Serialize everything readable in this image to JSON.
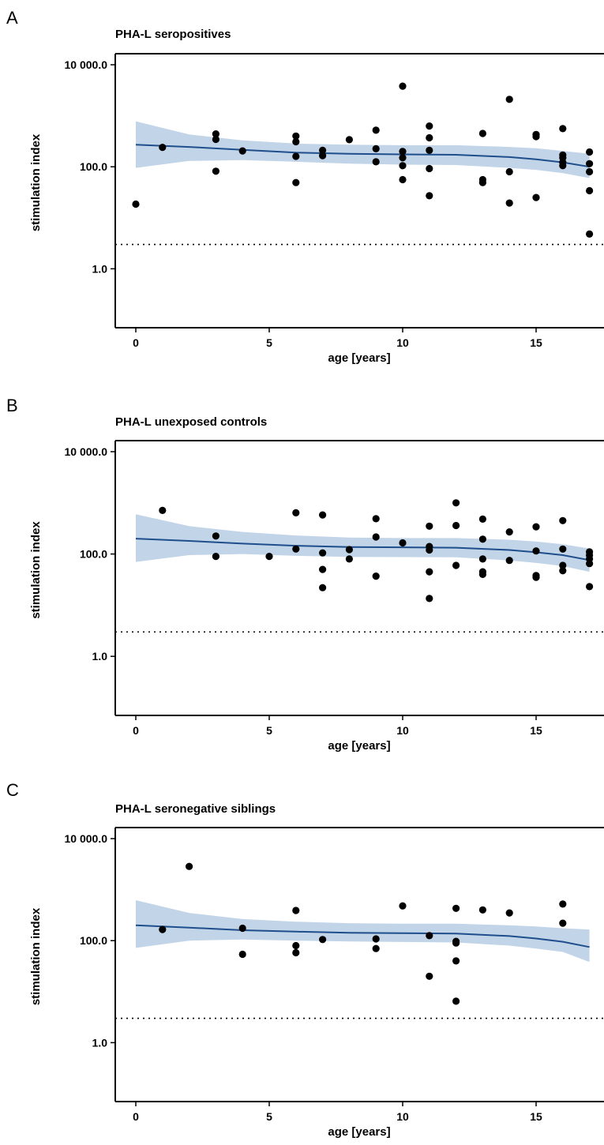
{
  "chart_data": [
    {
      "type": "scatter",
      "panel_label": "A",
      "title": "PHA-L seropositives",
      "xlabel": "age [years]",
      "ylabel": "stimulation index",
      "x_scale": "linear",
      "y_scale": "log",
      "xlim": [
        -1.5,
        17.5
      ],
      "ylim": [
        0.07,
        10000
      ],
      "x_ticks": [
        0,
        5,
        10,
        15
      ],
      "y_ticks": [
        1,
        100,
        10000
      ],
      "y_tick_labels": [
        "1.0",
        "100.0",
        "10 000.0"
      ],
      "reference_line": 3,
      "grid": false,
      "series": [
        {
          "kind": "points",
          "points": [
            [
              0,
              18.5
            ],
            [
              1,
              240
            ],
            [
              3,
              440
            ],
            [
              3,
              345
            ],
            [
              3,
              82
            ],
            [
              4,
              205
            ],
            [
              6,
              400
            ],
            [
              6,
              310
            ],
            [
              6,
              160
            ],
            [
              6,
              49
            ],
            [
              7,
              210
            ],
            [
              7,
              165
            ],
            [
              8,
              340
            ],
            [
              9,
              520
            ],
            [
              9,
              225
            ],
            [
              9,
              125
            ],
            [
              10,
              3800
            ],
            [
              10,
              200
            ],
            [
              10,
              150
            ],
            [
              10,
              105
            ],
            [
              10,
              56
            ],
            [
              11,
              630
            ],
            [
              11,
              370
            ],
            [
              11,
              210
            ],
            [
              11,
              92
            ],
            [
              11,
              27
            ],
            [
              13,
              450
            ],
            [
              13,
              56
            ],
            [
              13,
              49
            ],
            [
              14,
              2100
            ],
            [
              14,
              80
            ],
            [
              14,
              19.5
            ],
            [
              15,
              430
            ],
            [
              15,
              390
            ],
            [
              15,
              25
            ],
            [
              16,
              560
            ],
            [
              16,
              170
            ],
            [
              16,
              150
            ],
            [
              16,
              122
            ],
            [
              16,
              105
            ],
            [
              17,
              195
            ],
            [
              17,
              115
            ],
            [
              17,
              80
            ],
            [
              17,
              34
            ],
            [
              17,
              4.8
            ]
          ]
        },
        {
          "kind": "smooth",
          "color": "#1f4e8c",
          "band_color": "#c2d4e8",
          "x": [
            0,
            2,
            4,
            6,
            8,
            10,
            12,
            14,
            15,
            16,
            17
          ],
          "y": [
            270,
            245,
            215,
            190,
            180,
            175,
            172,
            155,
            140,
            122,
            100
          ],
          "lower": [
            95,
            130,
            135,
            125,
            115,
            110,
            108,
            95,
            87,
            75,
            60
          ],
          "upper": [
            780,
            430,
            330,
            285,
            270,
            265,
            265,
            245,
            230,
            205,
            180
          ]
        }
      ]
    },
    {
      "type": "scatter",
      "panel_label": "B",
      "title": "PHA-L unexposed controls",
      "xlabel": "age [years]",
      "ylabel": "stimulation index",
      "x_scale": "linear",
      "y_scale": "log",
      "xlim": [
        -1.5,
        17.5
      ],
      "ylim": [
        0.07,
        10000
      ],
      "x_ticks": [
        0,
        5,
        10,
        15
      ],
      "y_ticks": [
        1,
        100,
        10000
      ],
      "y_tick_labels": [
        "1.0",
        "100.0",
        "10 000.0"
      ],
      "reference_line": 3,
      "grid": false,
      "series": [
        {
          "kind": "points",
          "points": [
            [
              1,
              710
            ],
            [
              3,
              225
            ],
            [
              3,
              90
            ],
            [
              5,
              90
            ],
            [
              6,
              640
            ],
            [
              6,
              125
            ],
            [
              7,
              580
            ],
            [
              7,
              105
            ],
            [
              7,
              50
            ],
            [
              7,
              22
            ],
            [
              8,
              122
            ],
            [
              8,
              80
            ],
            [
              9,
              490
            ],
            [
              9,
              215
            ],
            [
              9,
              37
            ],
            [
              10,
              165
            ],
            [
              11,
              350
            ],
            [
              11,
              140
            ],
            [
              11,
              120
            ],
            [
              11,
              45
            ],
            [
              11,
              13.5
            ],
            [
              12,
              1000
            ],
            [
              12,
              360
            ],
            [
              12,
              60
            ],
            [
              13,
              480
            ],
            [
              13,
              195
            ],
            [
              13,
              80
            ],
            [
              13,
              45
            ],
            [
              13,
              40
            ],
            [
              14,
              270
            ],
            [
              14,
              75
            ],
            [
              15,
              340
            ],
            [
              15,
              115
            ],
            [
              15,
              38
            ],
            [
              15,
              35
            ],
            [
              16,
              450
            ],
            [
              16,
              125
            ],
            [
              16,
              60
            ],
            [
              16,
              47
            ],
            [
              17,
              110
            ],
            [
              17,
              95
            ],
            [
              17,
              80
            ],
            [
              17,
              65
            ],
            [
              17,
              23
            ]
          ]
        },
        {
          "kind": "smooth",
          "color": "#1f4e8c",
          "band_color": "#c2d4e8",
          "x": [
            0,
            2,
            4,
            6,
            8,
            10,
            12,
            14,
            15,
            16,
            17
          ],
          "y": [
            200,
            180,
            160,
            145,
            137,
            135,
            133,
            120,
            108,
            95,
            76
          ],
          "lower": [
            70,
            95,
            100,
            92,
            88,
            87,
            86,
            75,
            67,
            58,
            45
          ],
          "upper": [
            600,
            350,
            270,
            230,
            210,
            205,
            205,
            190,
            175,
            155,
            128
          ]
        }
      ]
    },
    {
      "type": "scatter",
      "panel_label": "C",
      "title": "PHA-L seronegative siblings",
      "xlabel": "age [years]",
      "ylabel": "stimulation index",
      "x_scale": "linear",
      "y_scale": "log",
      "xlim": [
        -1.5,
        17.5
      ],
      "ylim": [
        0.07,
        10000
      ],
      "x_ticks": [
        0,
        5,
        10,
        15
      ],
      "y_ticks": [
        1,
        100,
        10000
      ],
      "y_tick_labels": [
        "1.0",
        "100.0",
        "10 000.0"
      ],
      "reference_line": 3,
      "grid": false,
      "series": [
        {
          "kind": "points",
          "points": [
            [
              1,
              165
            ],
            [
              2,
              2850
            ],
            [
              4,
              175
            ],
            [
              4,
              54
            ],
            [
              6,
              390
            ],
            [
              6,
              80
            ],
            [
              6,
              58
            ],
            [
              7,
              105
            ],
            [
              9,
              108
            ],
            [
              9,
              70
            ],
            [
              10,
              480
            ],
            [
              11,
              125
            ],
            [
              11,
              20
            ],
            [
              12,
              430
            ],
            [
              12,
              97
            ],
            [
              12,
              90
            ],
            [
              12,
              40
            ],
            [
              12,
              6.5
            ],
            [
              13,
              400
            ],
            [
              14,
              350
            ],
            [
              16,
              520
            ],
            [
              16,
              220
            ]
          ]
        },
        {
          "kind": "smooth",
          "color": "#1f4e8c",
          "band_color": "#c2d4e8",
          "x": [
            0,
            2,
            4,
            6,
            8,
            10,
            12,
            14,
            15,
            16,
            17
          ],
          "y": [
            200,
            180,
            160,
            150,
            143,
            140,
            138,
            123,
            110,
            95,
            75
          ],
          "lower": [
            72,
            100,
            105,
            100,
            96,
            94,
            92,
            80,
            70,
            60,
            38
          ],
          "upper": [
            620,
            350,
            265,
            235,
            220,
            215,
            215,
            200,
            190,
            175,
            165
          ]
        }
      ]
    }
  ]
}
